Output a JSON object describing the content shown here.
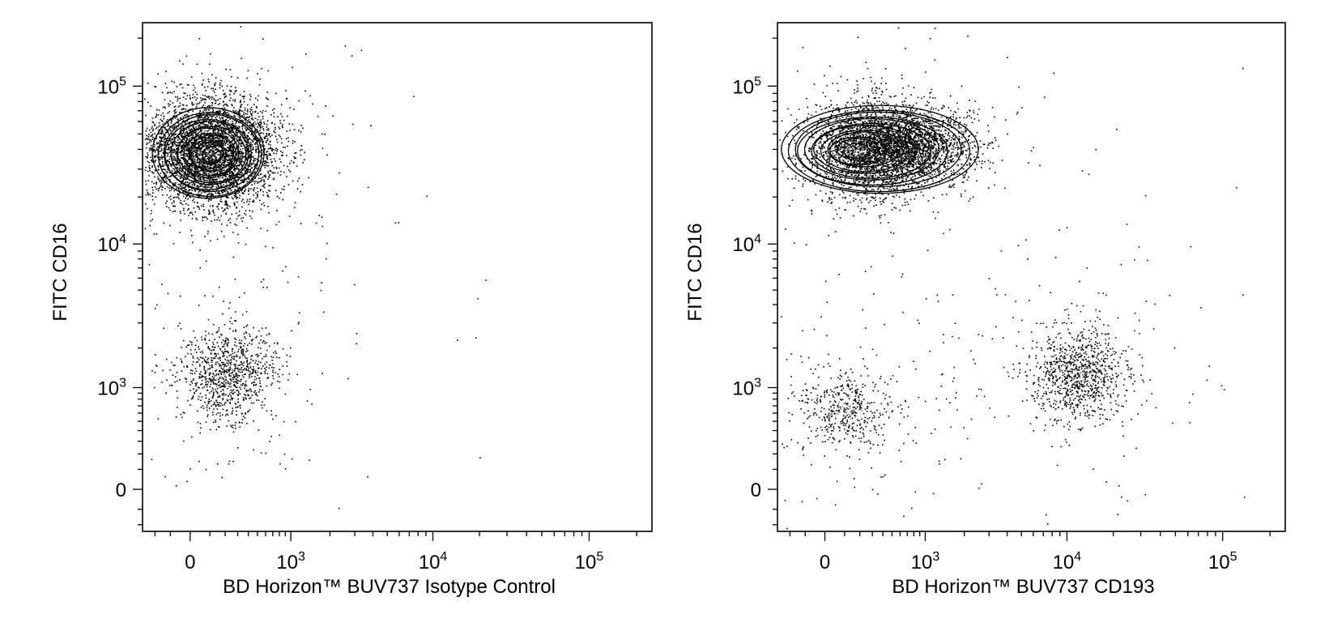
{
  "chart_data": [
    {
      "type": "scatter",
      "subtype": "flow-cytometry-dot-contour",
      "title": "",
      "xlabel": "BD Horizon™ BUV737 Isotype Control",
      "ylabel": "FITC CD16",
      "x_scale": "biexponential",
      "y_scale": "biexponential",
      "xlim": [
        -300,
        250000
      ],
      "ylim": [
        -250,
        250000
      ],
      "x_ticks": [
        {
          "label": "0",
          "value": 0
        },
        {
          "label": "10",
          "exp": "3",
          "value": 1000
        },
        {
          "label": "10",
          "exp": "4",
          "value": 10000
        },
        {
          "label": "10",
          "exp": "5",
          "value": 100000
        }
      ],
      "y_ticks": [
        {
          "label": "0",
          "value": 0
        },
        {
          "label": "10",
          "exp": "3",
          "value": 1000
        },
        {
          "label": "10",
          "exp": "4",
          "value": 10000
        },
        {
          "label": "10",
          "exp": "5",
          "value": 100000
        }
      ],
      "populations": [
        {
          "x_center": 100,
          "y_center": 38000,
          "density": "high",
          "has_contours": true
        },
        {
          "x_center": 200,
          "y_center": 1300,
          "density": "medium",
          "has_contours": false
        }
      ],
      "grid": false,
      "legend": "none"
    },
    {
      "type": "scatter",
      "subtype": "flow-cytometry-dot-contour",
      "title": "",
      "xlabel": "BD Horizon™ BUV737 CD193",
      "ylabel": "FITC CD16",
      "x_scale": "biexponential",
      "y_scale": "biexponential",
      "xlim": [
        -300,
        250000
      ],
      "ylim": [
        -250,
        250000
      ],
      "x_ticks": [
        {
          "label": "0",
          "value": 0
        },
        {
          "label": "10",
          "exp": "3",
          "value": 1000
        },
        {
          "label": "10",
          "exp": "4",
          "value": 10000
        },
        {
          "label": "10",
          "exp": "5",
          "value": 100000
        }
      ],
      "y_ticks": [
        {
          "label": "0",
          "value": 0
        },
        {
          "label": "10",
          "exp": "3",
          "value": 1000
        },
        {
          "label": "10",
          "exp": "4",
          "value": 10000
        },
        {
          "label": "10",
          "exp": "5",
          "value": 100000
        }
      ],
      "populations": [
        {
          "x_center": 150,
          "y_center": 40000,
          "x_extent_to": 1200,
          "density": "high",
          "has_contours": true
        },
        {
          "x_center": 12000,
          "y_center": 1300,
          "density": "medium",
          "has_contours": false
        },
        {
          "x_center": 100,
          "y_center": 650,
          "density": "low",
          "has_contours": false
        }
      ],
      "grid": false,
      "legend": "none"
    }
  ]
}
